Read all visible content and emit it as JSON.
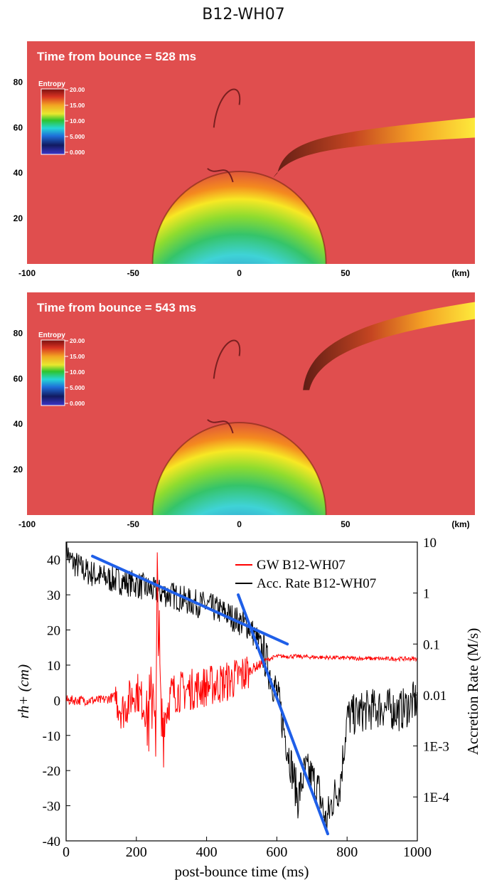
{
  "figure_title": "B12-WH07",
  "panels": [
    {
      "time_label": "Time from bounce = 528 ms",
      "colorbar": {
        "title": "Entropy",
        "ticks": [
          "20.00",
          "15.00",
          "10.00",
          "5.000",
          "0.000"
        ]
      },
      "x_ticks": [
        "-100",
        "-50",
        "0",
        "50"
      ],
      "x_unit": "(km)",
      "y_ticks": [
        "80",
        "60",
        "40",
        "20"
      ],
      "plume_end_y": 60
    },
    {
      "time_label": "Time from bounce = 543 ms",
      "colorbar": {
        "title": "Entropy",
        "ticks": [
          "20.00",
          "15.00",
          "10.00",
          "5.000",
          "0.000"
        ]
      },
      "x_ticks": [
        "-100",
        "-50",
        "0",
        "50"
      ],
      "x_unit": "(km)",
      "y_ticks": [
        "80",
        "60",
        "40",
        "20"
      ],
      "plume_end_y": 90
    }
  ],
  "colors": {
    "background_entropy": "#e04e4e",
    "gw_series": "#ff0000",
    "accretion_series": "#000000",
    "fit_lines": "#1f5fe8"
  },
  "chart_data": {
    "type": "line",
    "xlabel": "post-bounce time (ms)",
    "ylabel": "rh+ (cm)",
    "ylabel_right": "Accretion Rate (M/s)",
    "xlim": [
      0,
      1000
    ],
    "ylim": [
      -40,
      45
    ],
    "x_ticks": [
      "0",
      "200",
      "400",
      "600",
      "800",
      "1000"
    ],
    "y_ticks": [
      "40",
      "30",
      "20",
      "10",
      "0",
      "-10",
      "-20",
      "-30",
      "-40"
    ],
    "y2_ticks": [
      "10",
      "1",
      "0.1",
      "0.01",
      "1E-3",
      "1E-4"
    ],
    "legend_position": "top-right",
    "series": [
      {
        "name": "GW B12-WH07",
        "x": [
          0,
          100,
          140,
          160,
          200,
          240,
          250,
          255,
          260,
          270,
          300,
          350,
          400,
          450,
          500,
          530,
          550,
          570,
          600,
          650,
          700,
          800,
          900,
          1000
        ],
        "y": [
          0,
          0,
          1,
          -3,
          3,
          -5,
          10,
          -20,
          38,
          -8,
          2,
          3,
          4,
          5,
          7,
          9,
          10,
          11.5,
          12.5,
          12.5,
          12.3,
          12.0,
          11.8,
          11.8
        ]
      },
      {
        "name": "Acc. Rate B12-WH07",
        "x": [
          0,
          10,
          50,
          100,
          150,
          200,
          250,
          300,
          350,
          400,
          450,
          500,
          520,
          540,
          560,
          580,
          600,
          620,
          640,
          660,
          680,
          700,
          720,
          740,
          760,
          780,
          800,
          850,
          900,
          950,
          1000
        ],
        "y": [
          44,
          40,
          37,
          35,
          34,
          33,
          31,
          30,
          28,
          27,
          25,
          22,
          21,
          18,
          14,
          8,
          2,
          -8,
          -18,
          -28,
          -20,
          -22,
          -26,
          -35,
          -28,
          -24,
          -5,
          -3,
          -2,
          -3,
          0
        ]
      }
    ],
    "fit_lines": [
      {
        "x": [
          75,
          630
        ],
        "y": [
          41,
          16
        ]
      },
      {
        "x": [
          490,
          745
        ],
        "y": [
          30,
          -38
        ]
      }
    ]
  }
}
